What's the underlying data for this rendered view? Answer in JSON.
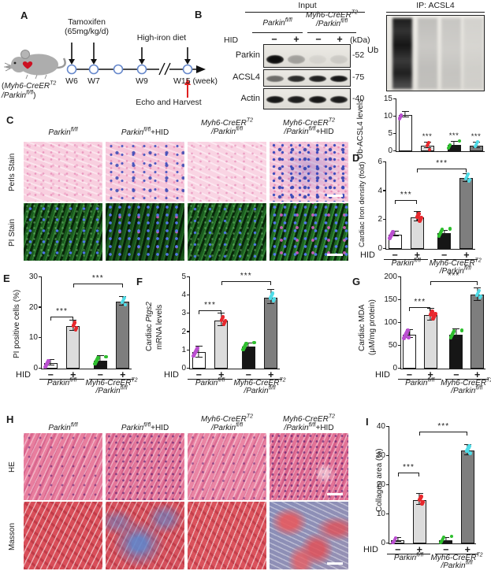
{
  "panels": {
    "a": "A",
    "b": "B",
    "c": "C",
    "d": "D",
    "e": "E",
    "f": "F",
    "g": "G",
    "h": "H",
    "i": "I"
  },
  "panel_a": {
    "tamoxifen_line1": "Tamoxifen",
    "tamoxifen_line2": "(65mg/kg/d)",
    "high_iron": "High-iron diet",
    "weeks": [
      "W6",
      "W7",
      "W9"
    ],
    "week_final": "W15 (week)",
    "echo": "Echo and Harvest",
    "mouse_line1_segs": [
      {
        "t": "("
      },
      {
        "t": "Myh6-CreER",
        "i": 1
      },
      {
        "t": "T2",
        "s": 1,
        "i": 1
      }
    ],
    "mouse_line2_segs": [
      {
        "t": "/Parkin",
        "i": 1
      },
      {
        "t": "fl/fl",
        "s": 1,
        "i": 1
      },
      {
        "t": ")"
      }
    ]
  },
  "panel_b": {
    "input_header": "Input",
    "ip_header": "IP: ACSL4",
    "hid": "HID",
    "lane_signs": [
      "−",
      "+",
      "−",
      "+"
    ],
    "kda_label": "(kDa)",
    "rows": [
      {
        "name": "Parkin",
        "kda": "-52",
        "band_intensity": [
          1,
          0.3,
          0.06,
          0.1
        ]
      },
      {
        "name": "ACSL4",
        "kda": "-75",
        "band_intensity": [
          0.55,
          0.85,
          0.9,
          0.95
        ]
      },
      {
        "name": "Actin",
        "kda": "-40",
        "band_intensity": [
          0.95,
          0.92,
          0.95,
          0.93
        ]
      }
    ],
    "ub_label": "Ub",
    "ip_lane_intensity": [
      1,
      0.38,
      0.32,
      0.22
    ]
  },
  "genotype": {
    "hid": "HID",
    "hid_values": [
      "−",
      "+",
      "−",
      "+"
    ],
    "headers": [
      {
        "l1": [
          {
            "t": "Parkin",
            "i": 1
          },
          {
            "t": "fl/fl",
            "s": 1,
            "i": 1
          }
        ]
      },
      {
        "l1": [
          {
            "t": "Parkin",
            "i": 1
          },
          {
            "t": "fl/fl",
            "s": 1,
            "i": 1
          },
          {
            "t": "+HID"
          }
        ]
      },
      {
        "l1": [
          {
            "t": "Myh6-CreER",
            "i": 1
          },
          {
            "t": "T2",
            "s": 1,
            "i": 1
          }
        ],
        "l2": [
          {
            "t": "/Parkin",
            "i": 1
          },
          {
            "t": "fl/fl",
            "s": 1,
            "i": 1
          }
        ]
      },
      {
        "l1": [
          {
            "t": "Myh6-CreER",
            "i": 1
          },
          {
            "t": "T2",
            "s": 1,
            "i": 1
          }
        ],
        "l2": [
          {
            "t": "/Parkin",
            "i": 1
          },
          {
            "t": "fl/fl",
            "s": 1,
            "i": 1
          },
          {
            "t": "+HID"
          }
        ]
      }
    ]
  },
  "panel_c": {
    "row_labels": [
      "Perls Stain",
      "PI Stain"
    ]
  },
  "panel_h": {
    "row_labels": [
      "HE",
      "Masson"
    ]
  },
  "chart_data": [
    {
      "id": "ub_acsl4",
      "type": "bar",
      "title": "",
      "ylabel": "Ub-ACSL4 levels",
      "categories": [
        "Parkin fl/fl HID−",
        "Parkin fl/fl HID+",
        "Myh6-CreERT2/Parkin fl/fl HID−",
        "Myh6-CreERT2/Parkin fl/fl HID+"
      ],
      "values": [
        10.5,
        1.5,
        1.8,
        1.5
      ],
      "errors": [
        0.7,
        0.7,
        0.8,
        0.7
      ],
      "ylim": [
        0,
        15
      ],
      "yticks": [
        0,
        5,
        10,
        15
      ],
      "star_labels": [
        "",
        "***",
        "***",
        "***"
      ],
      "bar_fills": [
        "#FFFFFF",
        "#DCDCDC",
        "#161616",
        "#7E7E7E"
      ],
      "dot_colors": [
        "#BA4FD0",
        "#E8282D",
        "#2FBF2F",
        "#4FDCE8"
      ],
      "dots_per_bar": [
        3,
        4,
        4,
        4
      ],
      "has_x_axis": false
    },
    {
      "id": "iron_density",
      "type": "bar",
      "title": "",
      "ylabel": "Cardiac Iron density (fold)",
      "categories": [
        "Parkin fl/fl HID−",
        "Parkin fl/fl HID+",
        "Myh6-CreERT2/Parkin fl/fl HID−",
        "Myh6-CreERT2/Parkin fl/fl HID+"
      ],
      "values": [
        1.0,
        2.2,
        1.1,
        4.9
      ],
      "errors": [
        0.12,
        0.3,
        0.1,
        0.25
      ],
      "ylim": [
        0,
        6
      ],
      "yticks": [
        0,
        2,
        4,
        6
      ],
      "sig": [
        {
          "a": 0,
          "b": 1,
          "label": "***",
          "top": 48
        },
        {
          "a": 1,
          "b": 3,
          "label": "***",
          "top": 8
        }
      ],
      "bar_fills": [
        "#FFFFFF",
        "#DCDCDC",
        "#161616",
        "#7E7E7E"
      ],
      "dot_colors": [
        "#BA4FD0",
        "#E8282D",
        "#2FBF2F",
        "#4FDCE8"
      ],
      "dots_per_bar": [
        5,
        6,
        6,
        6
      ],
      "has_x_axis": true
    },
    {
      "id": "pi_positive",
      "type": "bar",
      "title": "",
      "ylabel": "PI positive cells (%)",
      "categories": [
        "Parkin fl/fl HID−",
        "Parkin fl/fl HID+",
        "Myh6-CreERT2/Parkin fl/fl HID−",
        "Myh6-CreERT2/Parkin fl/fl HID+"
      ],
      "values": [
        1.8,
        14,
        2.5,
        22
      ],
      "errors": [
        0.8,
        1.6,
        1.3,
        1.4
      ],
      "ylim": [
        0,
        30
      ],
      "yticks": [
        0,
        10,
        20,
        30
      ],
      "sig": [
        {
          "a": 0,
          "b": 1,
          "label": "***",
          "top": 50
        },
        {
          "a": 1,
          "b": 3,
          "label": "***",
          "top": 8
        }
      ],
      "bar_fills": [
        "#FFFFFF",
        "#DCDCDC",
        "#161616",
        "#7E7E7E"
      ],
      "dot_colors": [
        "#BA4FD0",
        "#E8282D",
        "#2FBF2F",
        "#4FDCE8"
      ],
      "dots_per_bar": [
        5,
        5,
        6,
        5
      ],
      "has_x_axis": true
    },
    {
      "id": "ptgs2",
      "type": "bar",
      "title": "",
      "ylabel": "Cardiac Ptgs2 mRNA levels",
      "ylabel_l1_segs": [
        {
          "t": "Cardiac "
        },
        {
          "t": "Ptgs2",
          "i": 1
        }
      ],
      "ylabel_l2": "mRNA levels",
      "categories": [
        "Parkin fl/fl HID−",
        "Parkin fl/fl HID+",
        "Myh6-CreERT2/Parkin fl/fl HID−",
        "Myh6-CreERT2/Parkin fl/fl HID+"
      ],
      "values": [
        0.9,
        2.65,
        1.2,
        3.9
      ],
      "errors": [
        0.28,
        0.33,
        0.12,
        0.38
      ],
      "ylim": [
        0,
        5
      ],
      "yticks": [
        0,
        1,
        2,
        3,
        4,
        5
      ],
      "sig": [
        {
          "a": 0,
          "b": 1,
          "label": "***",
          "top": 42
        },
        {
          "a": 1,
          "b": 3,
          "label": "***",
          "top": 5
        }
      ],
      "bar_fills": [
        "#FFFFFF",
        "#DCDCDC",
        "#161616",
        "#7E7E7E"
      ],
      "dot_colors": [
        "#BA4FD0",
        "#E8282D",
        "#2FBF2F",
        "#4FDCE8"
      ],
      "dots_per_bar": [
        6,
        6,
        6,
        6
      ],
      "has_x_axis": true
    },
    {
      "id": "mda",
      "type": "bar",
      "title": "",
      "ylabel": "Cardiac MDA (μM/mg protein)",
      "ylabel_l1": "Cardiac MDA",
      "ylabel_l2": "(μM/mg protein)",
      "categories": [
        "Parkin fl/fl HID−",
        "Parkin fl/fl HID+",
        "Myh6-CreERT2/Parkin fl/fl HID−",
        "Myh6-CreERT2/Parkin fl/fl HID+"
      ],
      "values": [
        75,
        118,
        75,
        162
      ],
      "errors": [
        8,
        12,
        9,
        13
      ],
      "ylim": [
        0,
        200
      ],
      "yticks": [
        0,
        50,
        100,
        150,
        200
      ],
      "sig": [
        {
          "a": 0,
          "b": 1,
          "label": "***",
          "top": 38
        },
        {
          "a": 1,
          "b": 3,
          "label": "***",
          "top": 5
        }
      ],
      "bar_fills": [
        "#FFFFFF",
        "#DCDCDC",
        "#161616",
        "#7E7E7E"
      ],
      "dot_colors": [
        "#BA4FD0",
        "#E8282D",
        "#2FBF2F",
        "#4FDCE8"
      ],
      "dots_per_bar": [
        7,
        7,
        6,
        6
      ],
      "has_x_axis": true
    },
    {
      "id": "collagen",
      "type": "bar",
      "title": "",
      "ylabel": "Collagen area (%)",
      "categories": [
        "Parkin fl/fl HID−",
        "Parkin fl/fl HID+",
        "Myh6-CreERT2/Parkin fl/fl HID−",
        "Myh6-CreERT2/Parkin fl/fl HID+"
      ],
      "values": [
        1,
        15,
        1,
        32
      ],
      "errors": [
        0.3,
        1.8,
        0.3,
        1.6
      ],
      "ylim": [
        0,
        40
      ],
      "yticks": [
        0,
        10,
        20,
        30,
        40
      ],
      "sig": [
        {
          "a": 0,
          "b": 1,
          "label": "***",
          "top": 58
        },
        {
          "a": 1,
          "b": 3,
          "label": "***",
          "top": 6
        }
      ],
      "bar_fills": [
        "#FFFFFF",
        "#DCDCDC",
        "#161616",
        "#7E7E7E"
      ],
      "dot_colors": [
        "#BA4FD0",
        "#E8282D",
        "#2FBF2F",
        "#4FDCE8"
      ],
      "dots_per_bar": [
        5,
        5,
        6,
        5
      ],
      "has_x_axis": true
    }
  ]
}
